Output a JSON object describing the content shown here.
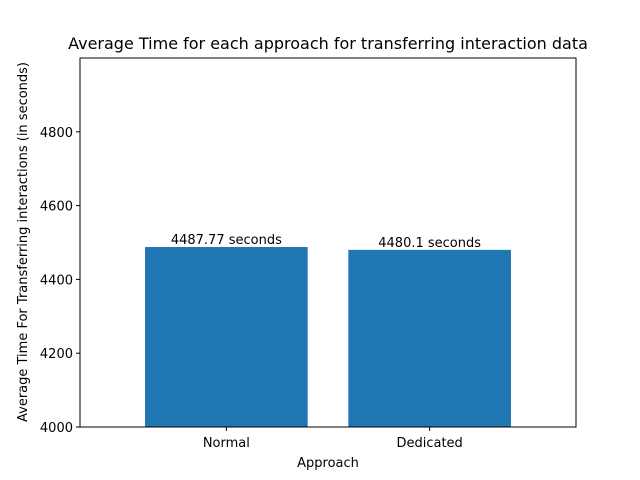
{
  "chart_data": {
    "type": "bar",
    "title": "Average Time for each approach for transferring interaction data",
    "xlabel": "Approach",
    "ylabel": "Average Time For Transferring interactions (in seconds)",
    "categories": [
      "Normal",
      "Dedicated"
    ],
    "values": [
      4487.77,
      4480.1
    ],
    "data_labels": [
      "4487.77 seconds",
      "4480.1 seconds"
    ],
    "ylim": [
      4000,
      5000
    ],
    "yticks": [
      4000,
      4200,
      4400,
      4600,
      4800
    ],
    "ytick_labels": [
      "4000",
      "4200",
      "4400",
      "4600",
      "4800"
    ],
    "grid": false,
    "bar_color": "#1f77b4"
  }
}
